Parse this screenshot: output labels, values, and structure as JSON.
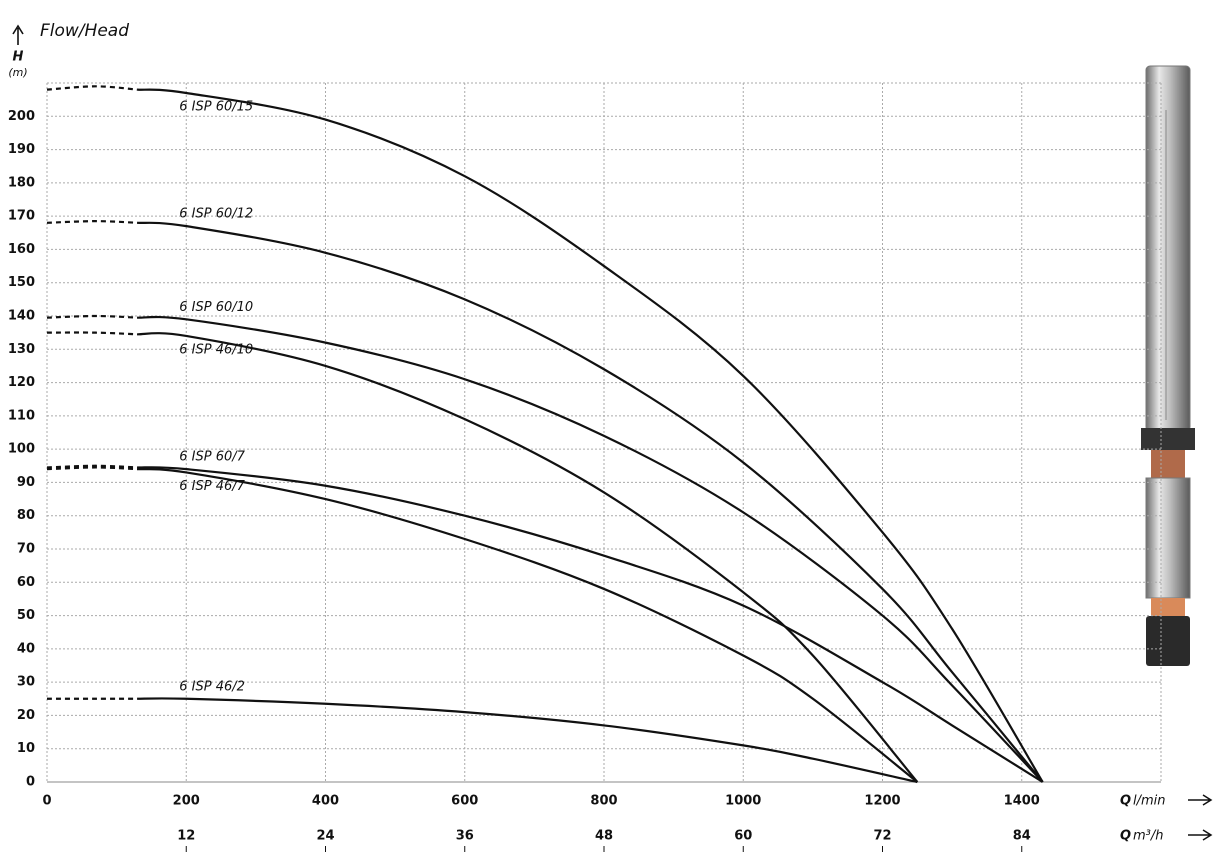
{
  "chart_data": {
    "type": "line",
    "title": "Flow/Head",
    "y_label": "H",
    "y_unit": "(m)",
    "x_label": {
      "symbol": "Q",
      "unit": "l/min"
    },
    "x2_label": {
      "symbol": "Q",
      "unit": "m³/h"
    },
    "xlim": [
      0,
      1600
    ],
    "xticks": [
      0,
      200,
      400,
      600,
      800,
      1000,
      1200,
      1400
    ],
    "x2lim": [
      0,
      96
    ],
    "x2ticks": [
      12,
      24,
      36,
      48,
      60,
      72,
      84
    ],
    "ylim": [
      0,
      210
    ],
    "yticks": [
      0,
      10,
      20,
      30,
      40,
      50,
      60,
      70,
      80,
      90,
      100,
      110,
      120,
      130,
      140,
      150,
      160,
      170,
      180,
      190,
      200
    ],
    "grid": true,
    "x_dashed_below": 130,
    "series": [
      {
        "name": "6 ISP 60/15",
        "color": "#111111",
        "label_position": "below",
        "x": [
          0,
          70,
          130,
          200,
          400,
          600,
          800,
          1000,
          1200,
          1300,
          1430
        ],
        "values": [
          208,
          209,
          208,
          207,
          199,
          182,
          155,
          122,
          75,
          46,
          0
        ]
      },
      {
        "name": "6 ISP 60/12",
        "color": "#111111",
        "label_position": "above",
        "x": [
          0,
          70,
          130,
          200,
          400,
          600,
          800,
          1000,
          1200,
          1300,
          1430
        ],
        "values": [
          168,
          168.5,
          168,
          167,
          159,
          145,
          124,
          96,
          58,
          33,
          0
        ]
      },
      {
        "name": "6 ISP 60/10",
        "color": "#111111",
        "label_position": "above",
        "x": [
          0,
          70,
          130,
          200,
          400,
          600,
          800,
          1000,
          1200,
          1300,
          1430
        ],
        "values": [
          139.5,
          140,
          139.5,
          139,
          132,
          121,
          104,
          81,
          50,
          29,
          0
        ]
      },
      {
        "name": "6 ISP 46/10",
        "color": "#111111",
        "label_position": "below",
        "x": [
          0,
          70,
          130,
          200,
          400,
          600,
          800,
          1000,
          1100,
          1250
        ],
        "values": [
          135,
          135,
          134.5,
          134,
          125,
          109,
          87,
          57,
          38,
          0
        ]
      },
      {
        "name": "6 ISP 60/7",
        "color": "#111111",
        "label_position": "above",
        "x": [
          0,
          70,
          130,
          200,
          400,
          600,
          800,
          1000,
          1200,
          1300,
          1430
        ],
        "values": [
          94.5,
          95,
          94.5,
          94,
          89,
          80,
          68,
          53,
          30,
          17,
          0
        ]
      },
      {
        "name": "6 ISP 46/7",
        "color": "#111111",
        "label_position": "below",
        "x": [
          0,
          70,
          130,
          200,
          400,
          600,
          800,
          1000,
          1100,
          1250
        ],
        "values": [
          94,
          94.5,
          94,
          93,
          85,
          73,
          58,
          38,
          25,
          0
        ]
      },
      {
        "name": "6 ISP 46/2",
        "color": "#111111",
        "label_position": "above",
        "x": [
          0,
          70,
          130,
          200,
          400,
          600,
          800,
          1000,
          1100,
          1250
        ],
        "values": [
          25,
          25,
          25,
          25,
          23.5,
          21,
          17,
          11,
          7,
          0
        ]
      }
    ]
  }
}
